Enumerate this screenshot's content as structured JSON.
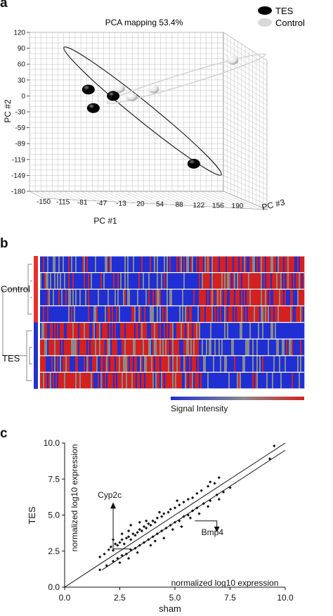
{
  "panels": {
    "a": "a",
    "b": "b",
    "c": "c"
  },
  "chart_data": [
    {
      "panel": "a",
      "type": "scatter",
      "title": "PCA mapping 53.4%",
      "xlabel": "PC #1",
      "ylabel": "PC #2",
      "zlabel": "PC #3",
      "x_ticks": [
        "-150",
        "-115",
        "-81",
        "-47",
        "-13",
        "20",
        "54",
        "88",
        "122",
        "156",
        "190"
      ],
      "y_ticks": [
        "120",
        "90",
        "60",
        "30",
        "0",
        "-30",
        "-59",
        "-89",
        "-119",
        "-149",
        "-180"
      ],
      "xlim": [
        -150,
        190
      ],
      "ylim": [
        -180,
        120
      ],
      "grid": true,
      "legend": "top-right",
      "series": [
        {
          "name": "TES",
          "color": "#000000",
          "points": [
            [
              -55,
              12
            ],
            [
              -15,
              0
            ],
            [
              -47,
              -23
            ],
            [
              115,
              -128
            ]
          ]
        },
        {
          "name": "Control",
          "color": "#d9d9d9",
          "points": [
            [
              -5,
              14
            ],
            [
              15,
              -2
            ],
            [
              50,
              13
            ],
            [
              178,
              67
            ]
          ]
        }
      ]
    },
    {
      "panel": "b",
      "type": "heatmap",
      "row_groups": [
        {
          "name": "Control",
          "color": "#e8302b",
          "rows": 4
        },
        {
          "name": "TES",
          "color": "#2233cc",
          "rows": 4
        }
      ],
      "colorbar_label": "Signal Intensity",
      "colors": {
        "low": "#1f2fd4",
        "mid": "#8a8a8a",
        "high": "#d42020"
      }
    },
    {
      "panel": "c",
      "type": "scatter",
      "xlabel": "sham",
      "ylabel": "TES",
      "xlim": [
        0,
        10
      ],
      "ylim": [
        0,
        10
      ],
      "x_ticks": [
        "0.0",
        "2.5",
        "5.0",
        "7.5",
        "10.0"
      ],
      "y_ticks": [
        "0.0",
        "2.5",
        "5.0",
        "7.5",
        "10.0"
      ],
      "annotations": {
        "inner_ylabel": "normalized log10 expression",
        "inner_xlabel": "normalized log10 expression",
        "up_label": "Cyp2c",
        "down_label": "Bmp4"
      },
      "up_points": [
        [
          1.6,
          2.1
        ],
        [
          1.8,
          2.3
        ],
        [
          2.0,
          2.6
        ],
        [
          2.1,
          2.8
        ],
        [
          2.2,
          2.55
        ],
        [
          2.3,
          3.0
        ],
        [
          2.4,
          2.9
        ],
        [
          2.5,
          3.1
        ],
        [
          2.6,
          3.3
        ],
        [
          2.7,
          3.0
        ],
        [
          2.8,
          3.4
        ],
        [
          2.9,
          3.5
        ],
        [
          3.0,
          3.3
        ],
        [
          3.1,
          3.7
        ],
        [
          3.2,
          3.6
        ],
        [
          3.3,
          3.8
        ],
        [
          3.4,
          4.0
        ],
        [
          3.5,
          3.9
        ],
        [
          3.6,
          4.2
        ],
        [
          3.7,
          4.1
        ],
        [
          3.8,
          4.4
        ],
        [
          3.9,
          4.3
        ],
        [
          4.0,
          4.6
        ],
        [
          4.1,
          4.5
        ],
        [
          4.2,
          4.8
        ],
        [
          4.4,
          4.9
        ],
        [
          4.5,
          5.1
        ],
        [
          4.7,
          5.2
        ],
        [
          4.8,
          5.4
        ],
        [
          5.0,
          5.5
        ],
        [
          5.2,
          5.7
        ],
        [
          5.4,
          5.9
        ],
        [
          5.6,
          6.1
        ],
        [
          5.8,
          6.2
        ],
        [
          6.0,
          6.5
        ],
        [
          6.2,
          6.7
        ],
        [
          6.5,
          7.0
        ],
        [
          6.8,
          7.2
        ],
        [
          7.0,
          7.6
        ],
        [
          3.0,
          4.3
        ],
        [
          3.4,
          4.5
        ],
        [
          2.6,
          3.7
        ],
        [
          2.2,
          3.3
        ],
        [
          4.3,
          5.2
        ],
        [
          5.1,
          6.0
        ],
        [
          3.7,
          4.6
        ],
        [
          6.6,
          7.3
        ],
        [
          2.9,
          3.9
        ]
      ],
      "down_points": [
        [
          1.6,
          1.2
        ],
        [
          1.9,
          1.5
        ],
        [
          2.2,
          1.8
        ],
        [
          2.4,
          2.0
        ],
        [
          2.6,
          2.2
        ],
        [
          2.8,
          2.3
        ],
        [
          3.0,
          2.6
        ],
        [
          3.2,
          2.7
        ],
        [
          3.4,
          2.9
        ],
        [
          3.6,
          3.1
        ],
        [
          3.8,
          3.3
        ],
        [
          4.0,
          3.5
        ],
        [
          4.2,
          3.7
        ],
        [
          4.4,
          3.9
        ],
        [
          4.6,
          4.1
        ],
        [
          4.8,
          4.3
        ],
        [
          5.0,
          4.5
        ],
        [
          5.2,
          4.6
        ],
        [
          5.4,
          4.9
        ],
        [
          5.6,
          5.0
        ],
        [
          5.8,
          5.3
        ],
        [
          6.0,
          5.5
        ],
        [
          6.3,
          5.8
        ],
        [
          6.6,
          6.0
        ],
        [
          6.9,
          6.4
        ],
        [
          7.2,
          6.6
        ],
        [
          7.5,
          6.9
        ],
        [
          2.5,
          1.7
        ],
        [
          3.3,
          2.4
        ],
        [
          4.1,
          3.2
        ],
        [
          4.9,
          4.0
        ],
        [
          5.7,
          4.8
        ],
        [
          6.5,
          5.6
        ],
        [
          3.9,
          2.9
        ],
        [
          5.3,
          4.2
        ],
        [
          4.5,
          3.4
        ],
        [
          2.9,
          2.0
        ],
        [
          6.1,
          5.1
        ],
        [
          7.0,
          6.1
        ],
        [
          9.3,
          8.9
        ]
      ],
      "extra_points": [
        [
          9.5,
          9.8
        ]
      ]
    }
  ]
}
